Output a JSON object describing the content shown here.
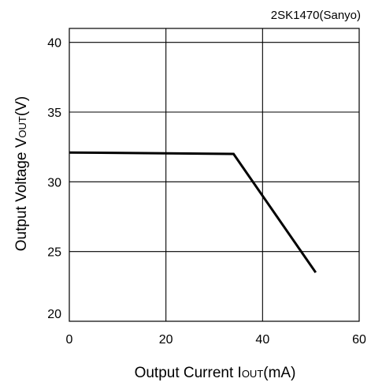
{
  "chart_data": {
    "type": "line",
    "annotation": "2SK1470(Sanyo)",
    "xlabel": {
      "main": "Output Current I",
      "sub": "OUT",
      "unit": "(mA)"
    },
    "ylabel": {
      "main": "Output Voltage V",
      "sub": "OUT",
      "unit": "(V)"
    },
    "xlim": [
      0,
      60
    ],
    "ylim": [
      20,
      41
    ],
    "xticks": [
      0,
      20,
      40,
      60
    ],
    "yticks": [
      20,
      25,
      30,
      35,
      40
    ],
    "grid": true,
    "series": [
      {
        "x": [
          0,
          34,
          51
        ],
        "y": [
          32.1,
          32.0,
          23.5
        ]
      }
    ]
  }
}
